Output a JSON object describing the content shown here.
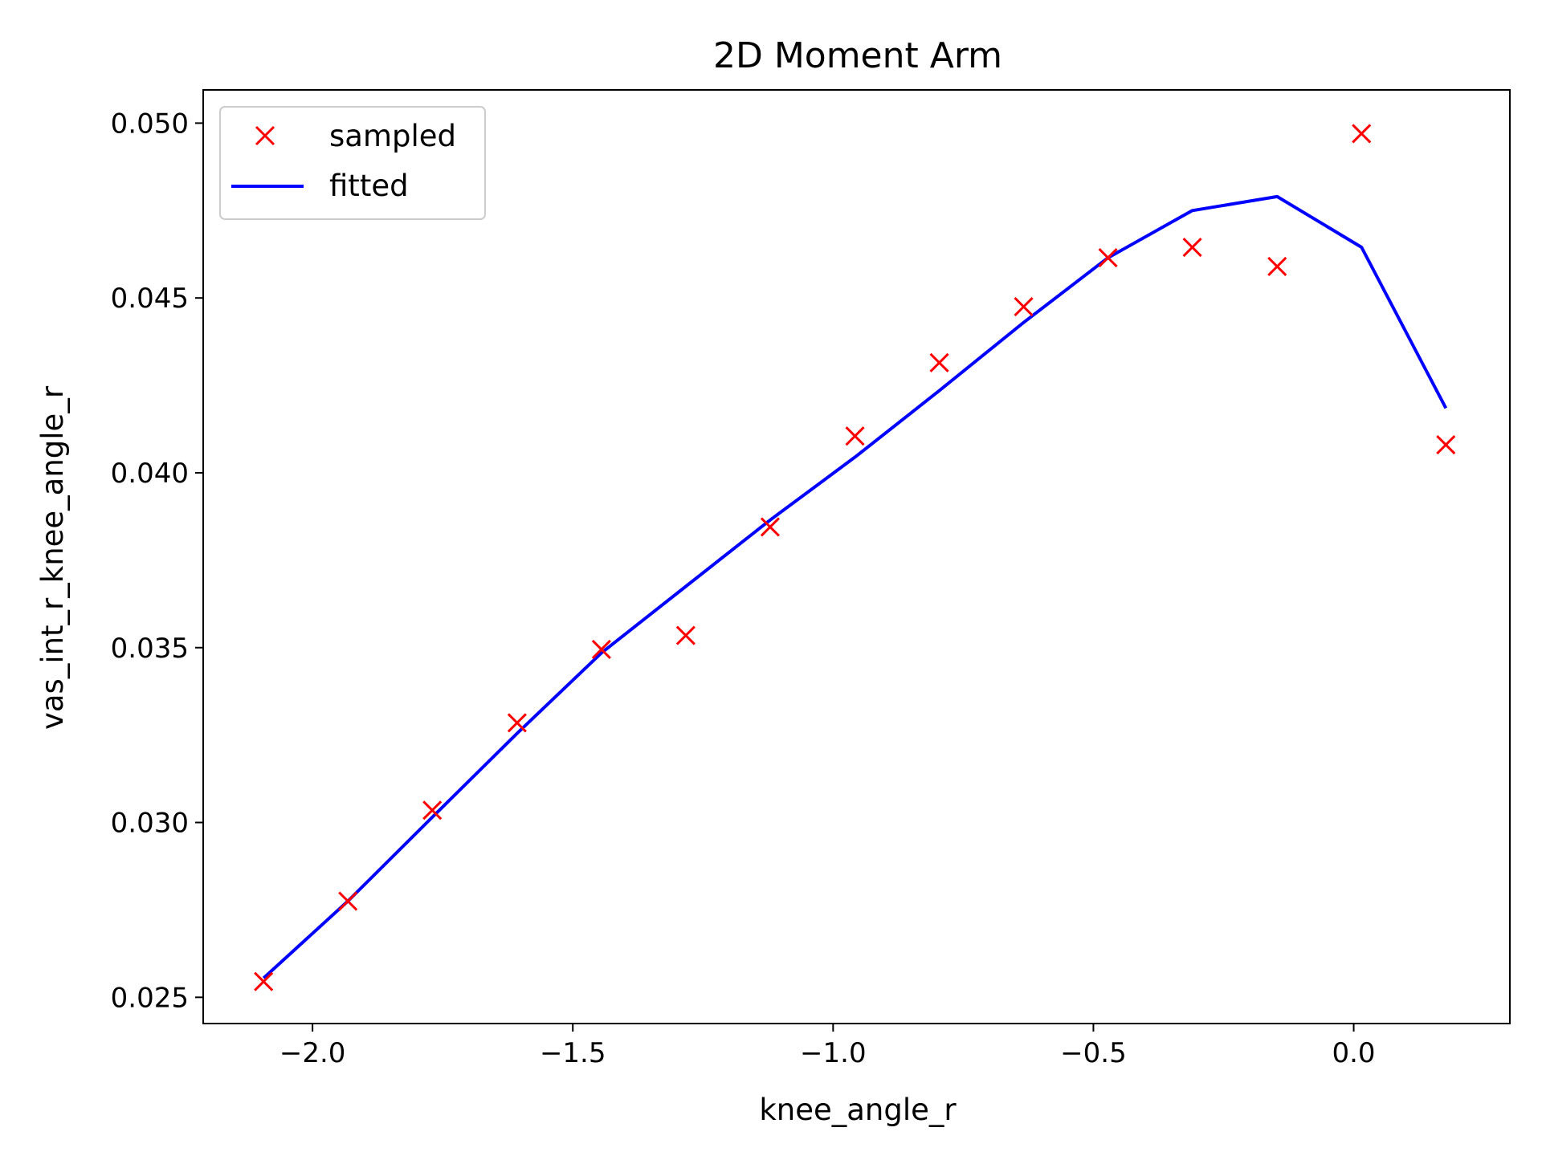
{
  "chart_data": {
    "type": "scatter",
    "title": "2D Moment Arm",
    "xlabel": "knee_angle_r",
    "ylabel": "vas_int_r_knee_angle_r",
    "xlim": [
      -2.21,
      0.3
    ],
    "ylim": [
      0.02425,
      0.05095
    ],
    "xticks": [
      -2.0,
      -1.5,
      -1.0,
      -0.5,
      0.0
    ],
    "xtick_labels": [
      "−2.0",
      "−1.5",
      "−1.0",
      "−0.5",
      "0.0"
    ],
    "yticks": [
      0.025,
      0.03,
      0.035,
      0.04,
      0.045,
      0.05
    ],
    "ytick_labels": [
      "0.025",
      "0.030",
      "0.035",
      "0.040",
      "0.045",
      "0.050"
    ],
    "legend_position": "upper left",
    "grid": false,
    "series": [
      {
        "name": "sampled",
        "kind": "scatter",
        "marker": "x",
        "color": "#ff0000",
        "x": [
          -2.094,
          -1.932,
          -1.77,
          -1.607,
          -1.445,
          -1.283,
          -1.121,
          -0.958,
          -0.796,
          -0.634,
          -0.472,
          -0.31,
          -0.147,
          0.015,
          0.177
        ],
        "y": [
          0.02545,
          0.02775,
          0.03035,
          0.03285,
          0.03495,
          0.03535,
          0.03845,
          0.04105,
          0.04315,
          0.04475,
          0.04615,
          0.04645,
          0.0459,
          0.0497,
          0.0408
        ]
      },
      {
        "name": "fitted",
        "kind": "line",
        "color": "#0000ff",
        "x": [
          -2.094,
          -1.932,
          -1.77,
          -1.607,
          -1.445,
          -1.283,
          -1.121,
          -0.958,
          -0.796,
          -0.634,
          -0.472,
          -0.31,
          -0.147,
          0.015,
          0.177
        ],
        "y": [
          0.02555,
          0.02775,
          0.03015,
          0.03255,
          0.03485,
          0.03675,
          0.03865,
          0.04045,
          0.04235,
          0.0443,
          0.04615,
          0.0475,
          0.0479,
          0.04645,
          0.04185
        ]
      }
    ]
  }
}
